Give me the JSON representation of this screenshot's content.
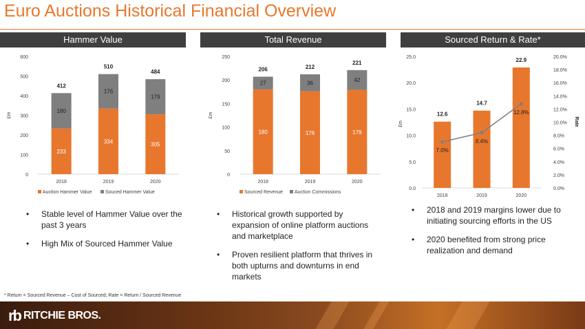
{
  "title": "Euro Auctions Historical Financial Overview",
  "colors": {
    "accent": "#e8772e",
    "gray_bar": "#7f7f7f",
    "header_bg": "#3f3f3f"
  },
  "panels": [
    {
      "header": "Hammer Value",
      "bullets": [
        "Stable level of Hammer Value over the past 3 years",
        "High Mix of Sourced Hammer Value"
      ]
    },
    {
      "header": "Total Revenue",
      "bullets": [
        "Historical growth supported by expansion of online platform auctions and marketplace",
        "Proven resilient platform that thrives in both upturns and downturns in end markets"
      ]
    },
    {
      "header": "Sourced Return & Rate*",
      "bullets": [
        "2018 and 2019 margins lower due to initiating sourcing efforts in the US",
        "2020 benefited from strong price realization and demand"
      ]
    }
  ],
  "footnote": "* Return = Sourced Revenue – Cost of Sourced; Rate = Return / Sourced Revenue",
  "logo": {
    "mark": "rb",
    "text": "RITCHIE BROS."
  },
  "chart_data": [
    {
      "type": "bar",
      "stacked": true,
      "categories": [
        "2018",
        "2019",
        "2020"
      ],
      "series": [
        {
          "name": "Auction Hammer Value",
          "values": [
            233,
            334,
            305
          ],
          "color": "#e8772e"
        },
        {
          "name": "Souced Hammer Value",
          "values": [
            180,
            176,
            179
          ],
          "color": "#7f7f7f"
        }
      ],
      "totals": [
        "412",
        "510",
        "484"
      ],
      "ylabel": "£m",
      "ylim": [
        0,
        600
      ],
      "yticks": [
        "0",
        "100",
        "200",
        "300",
        "400",
        "500",
        "600"
      ],
      "legend": "bottom"
    },
    {
      "type": "bar",
      "stacked": true,
      "categories": [
        "2018",
        "2019",
        "2020"
      ],
      "series": [
        {
          "name": "Sourced Revenue",
          "values": [
            180,
            176,
            179
          ],
          "color": "#e8772e"
        },
        {
          "name": "Auction Commissions",
          "values": [
            27,
            36,
            42
          ],
          "color": "#7f7f7f"
        }
      ],
      "totals": [
        "206",
        "212",
        "221"
      ],
      "ylabel": "£m",
      "ylim": [
        0,
        250
      ],
      "yticks": [
        "0",
        "50",
        "100",
        "150",
        "200",
        "250"
      ],
      "legend": "bottom"
    },
    {
      "type": "bar",
      "categories": [
        "2018",
        "2019",
        "2020"
      ],
      "bars": {
        "values": [
          12.6,
          14.7,
          22.9
        ],
        "labels": [
          "12.6",
          "14.7",
          "22.9"
        ],
        "color": "#e8772e"
      },
      "line": {
        "values": [
          7.0,
          8.4,
          12.8
        ],
        "labels": [
          "7.0%",
          "8.4%",
          "12.8%"
        ],
        "color": "#7f7f7f"
      },
      "ylabel": "£m",
      "ylim": [
        0,
        25
      ],
      "yticks": [
        "0.0",
        "5.0",
        "10.0",
        "15.0",
        "20.0",
        "25.0"
      ],
      "y2label": "Rate",
      "y2lim": [
        0,
        20
      ],
      "y2ticks": [
        "0.0%",
        "2.0%",
        "4.0%",
        "6.0%",
        "8.0%",
        "10.0%",
        "12.0%",
        "14.0%",
        "16.0%",
        "18.0%",
        "20.0%"
      ]
    }
  ]
}
